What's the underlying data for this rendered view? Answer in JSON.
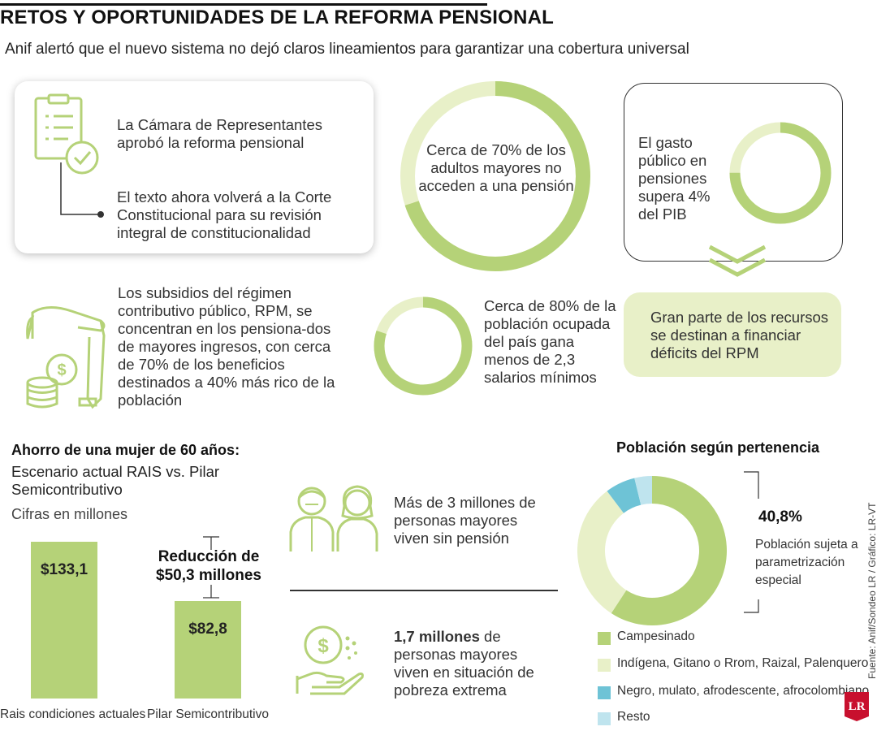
{
  "colors": {
    "green": "#b5d278",
    "light_green": "#e8f0c8",
    "blue": "#6ec3d6",
    "light_blue": "#bfe4ee",
    "red": "#c8102e",
    "text": "#333333"
  },
  "header": {
    "title": "RETOS Y OPORTUNIDADES DE LA REFORMA PENSIONAL",
    "subtitle": "Anif alertó que el nuevo sistema no dejó claros lineamientos para garantizar una cobertura universal"
  },
  "card1": {
    "icon": "clipboard-check-icon",
    "text1": "La Cámara de Representantes aprobó la reforma pensional",
    "text2": "El texto ahora volverá a la Corte Constitucional para su revisión integral de constitucionalidad"
  },
  "stat_70": {
    "text": "Cerca de 70% de los adultos mayores no acceden a una pensión",
    "share": 0.7
  },
  "stat_gasto": {
    "text": "El gasto público en pensiones supera 4% del PIB",
    "share": 0.75
  },
  "callout": {
    "icon": "chevron-down-icon",
    "text": "Gran parte de los recursos se destinan a financiar déficits del RPM"
  },
  "subsidios": {
    "icon": "hand-coins-icon",
    "text": "Los subsidios del régimen contributivo público, RPM, se concentran en los pensiona-dos de mayores ingresos, con cerca de 70% de los beneficios destinados a 40% más rico de la población"
  },
  "stat_80": {
    "text": "Cerca de 80% de la población ocupada del país gana menos de 2,3 salarios mínimos",
    "share": 0.8
  },
  "ahorro": {
    "title": "Ahorro de una mujer de 60 años:",
    "subtitle": "Escenario actual RAIS vs. Pilar Semicontributivo",
    "unit": "Cifras en millones",
    "reduction": "Reducción de $50,3 millones"
  },
  "mayores": {
    "icon1": "elderly-couple-icon",
    "text1": "Más de 3 millones de personas mayores viven sin pensión",
    "icon2": "hand-coin-icon",
    "bold": "1,7 millones",
    "text2": " de personas mayores viven en situación de pobreza extrema"
  },
  "poblacion": {
    "title": "Población según pertenencia",
    "pct": "40,8%",
    "note": "Población sujeta a parametrización especial"
  },
  "footer": {
    "source": "Fuente: Anif/Sondeo LR / Gráfico: LR-VT",
    "logo": "LR"
  },
  "chart_data": [
    {
      "type": "bar",
      "categories": [
        "Rais condiciones actuales",
        "Pilar Semicontributivo"
      ],
      "values": [
        133.1,
        82.8
      ],
      "value_labels": [
        "$133,1",
        "$82,8"
      ],
      "title": "Ahorro de una mujer de 60 años:",
      "subtitle": "Escenario actual RAIS vs. Pilar Semicontributivo",
      "ylabel": "Cifras en millones"
    },
    {
      "type": "pie",
      "title": "Población según pertenencia",
      "labels": [
        "Campesinado",
        "Indígena, Gitano o Rrom, Raizal, Palenquero",
        "Negro, mulato, afrodescente, afrocolombiano",
        "Resto"
      ],
      "values": [
        59.2,
        30.5,
        6.5,
        3.8
      ],
      "colors": [
        "#b5d278",
        "#e8f0c8",
        "#6ec3d6",
        "#bfe4ee"
      ],
      "annotation": "40,8%"
    }
  ]
}
